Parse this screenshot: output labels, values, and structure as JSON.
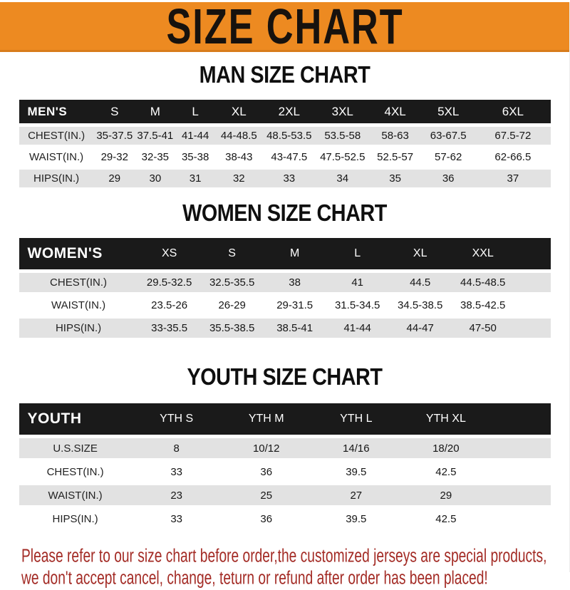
{
  "banner": {
    "title": "SIZE CHART"
  },
  "colors": {
    "banner_bg": "#ED8A21",
    "header_bar": "#1A1A1A",
    "row_alt": "#E2E2E2",
    "footer_text": "#A32B25"
  },
  "sections": [
    {
      "id": "men",
      "heading": "MAN SIZE CHART",
      "group_label": "MEN'S",
      "columns": [
        "S",
        "M",
        "L",
        "XL",
        "2XL",
        "3XL",
        "4XL",
        "5XL",
        "6XL"
      ],
      "rows": [
        {
          "label": "CHEST(IN.)",
          "values": [
            "35-37.5",
            "37.5-41",
            "41-44",
            "44-48.5",
            "48.5-53.5",
            "53.5-58",
            "58-63",
            "63-67.5",
            "67.5-72"
          ]
        },
        {
          "label": "WAIST(IN.)",
          "values": [
            "29-32",
            "32-35",
            "35-38",
            "38-43",
            "43-47.5",
            "47.5-52.5",
            "52.5-57",
            "57-62",
            "62-66.5"
          ]
        },
        {
          "label": "HIPS(IN.)",
          "values": [
            "29",
            "30",
            "31",
            "32",
            "33",
            "34",
            "35",
            "36",
            "37"
          ]
        }
      ]
    },
    {
      "id": "women",
      "heading": "WOMEN SIZE CHART",
      "group_label": "WOMEN'S",
      "columns": [
        "XS",
        "S",
        "M",
        "L",
        "XL",
        "XXL"
      ],
      "rows": [
        {
          "label": "CHEST(IN.)",
          "values": [
            "29.5-32.5",
            "32.5-35.5",
            "38",
            "41",
            "44.5",
            "44.5-48.5"
          ]
        },
        {
          "label": "WAIST(IN.)",
          "values": [
            "23.5-26",
            "26-29",
            "29-31.5",
            "31.5-34.5",
            "34.5-38.5",
            "38.5-42.5"
          ]
        },
        {
          "label": "HIPS(IN.)",
          "values": [
            "33-35.5",
            "35.5-38.5",
            "38.5-41",
            "41-44",
            "44-47",
            "47-50"
          ]
        }
      ]
    },
    {
      "id": "youth",
      "heading": "YOUTH SIZE CHART",
      "group_label": "YOUTH",
      "columns": [
        "YTH S",
        "YTH M",
        "YTH L",
        "YTH XL"
      ],
      "rows": [
        {
          "label": "U.S.SIZE",
          "values": [
            "8",
            "10/12",
            "14/16",
            "18/20"
          ]
        },
        {
          "label": "CHEST(IN.)",
          "values": [
            "33",
            "36",
            "39.5",
            "42.5"
          ]
        },
        {
          "label": "WAIST(IN.)",
          "values": [
            "23",
            "25",
            "27",
            "29"
          ]
        },
        {
          "label": "HIPS(IN.)",
          "values": [
            "33",
            "36",
            "39.5",
            "42.5"
          ]
        }
      ]
    }
  ],
  "footer": {
    "line1": "Please refer to our size chart before order,the customized jerseys are special products,",
    "line2": "we don't accept cancel, change, teturn or refund after order has been placed!"
  }
}
